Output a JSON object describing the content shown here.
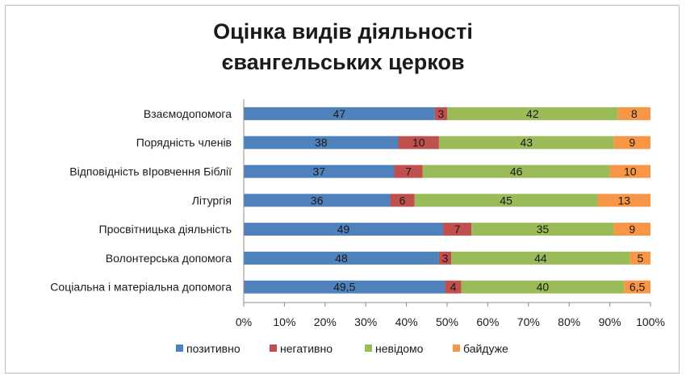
{
  "chart_data": {
    "type": "bar",
    "orientation": "horizontal",
    "stacked": "percent",
    "title_lines": [
      "Оцінка видів діяльності",
      "євангельських церков"
    ],
    "categories": [
      "Взаємодопомога",
      "Порядність членів",
      "Відповідність вІровчення Біблії",
      "Літургія",
      "Просвітницька діяльність",
      "Волонтерська допомога",
      "Соціальна і матеріальна допомога"
    ],
    "series": [
      {
        "name": "позитивно",
        "color": "#4f81bd",
        "values": [
          47,
          38,
          37,
          36,
          49,
          48,
          49.5
        ],
        "labels": [
          "47",
          "38",
          "37",
          "36",
          "49",
          "48",
          "49,5"
        ]
      },
      {
        "name": "негативно",
        "color": "#c0504d",
        "values": [
          3,
          10,
          7,
          6,
          7,
          3,
          4
        ],
        "labels": [
          "3",
          "10",
          "7",
          "6",
          "7",
          "3",
          "4"
        ]
      },
      {
        "name": "невідомо",
        "color": "#9bbb59",
        "values": [
          42,
          43,
          46,
          45,
          35,
          44,
          40
        ],
        "labels": [
          "42",
          "43",
          "46",
          "45",
          "35",
          "44",
          "40"
        ]
      },
      {
        "name": "байдуже",
        "color": "#f79646",
        "values": [
          8,
          9,
          10,
          13,
          9,
          5,
          6.5
        ],
        "labels": [
          "8",
          "9",
          "10",
          "13",
          "9",
          "5",
          "6,5"
        ]
      }
    ],
    "x_ticks": [
      "0%",
      "10%",
      "20%",
      "30%",
      "40%",
      "50%",
      "60%",
      "70%",
      "80%",
      "90%",
      "100%"
    ],
    "xlim": [
      0,
      100
    ],
    "grid": false,
    "legend_position": "bottom"
  }
}
